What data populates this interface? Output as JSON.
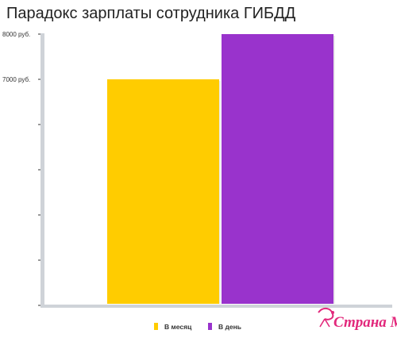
{
  "chart_data": {
    "type": "bar",
    "title": "Парадокс зарплаты сотрудника ГИБДД",
    "categories": [
      "В месяц",
      "В день"
    ],
    "values": [
      7000,
      8000
    ],
    "series": [
      {
        "name": "В месяц",
        "values": [
          7000,
          null
        ],
        "color": "#ffcc00"
      },
      {
        "name": "В день",
        "values": [
          null,
          8000
        ],
        "color": "#9933cc"
      }
    ],
    "yticks": [
      {
        "value": 8000,
        "label": "8000 руб."
      },
      {
        "value": 7000,
        "label": "7000 руб."
      },
      {
        "value": 6000,
        "label": ""
      },
      {
        "value": 5000,
        "label": ""
      },
      {
        "value": 4000,
        "label": ""
      },
      {
        "value": 3000,
        "label": ""
      },
      {
        "value": 2000,
        "label": ""
      }
    ],
    "ylim": [
      2000,
      8000
    ],
    "xlabel": "",
    "ylabel": "",
    "grid": false,
    "legend_position": "bottom",
    "axis_color": "#cfd3d8"
  },
  "watermark": {
    "text": "Страна Мам",
    "logo": "stork-logo"
  }
}
